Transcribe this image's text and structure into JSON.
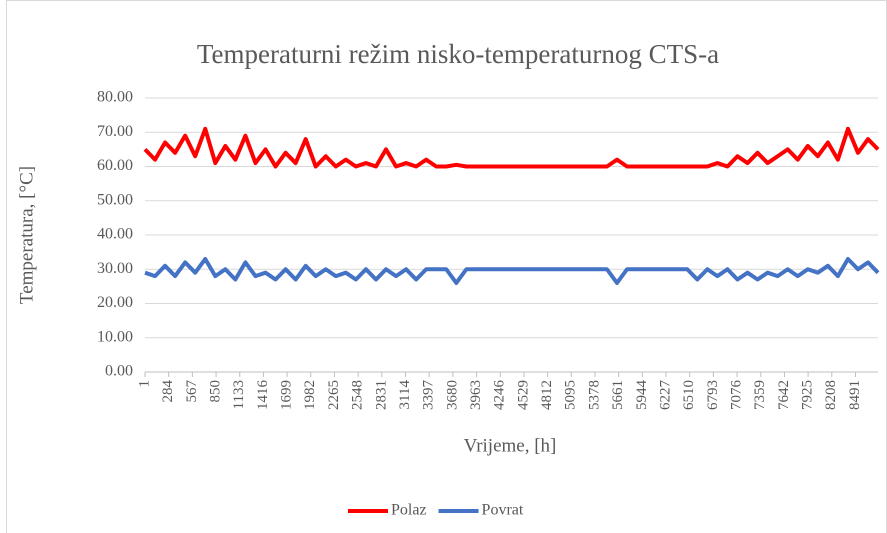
{
  "chart_data": {
    "type": "line",
    "title": "Temperaturni  režim nisko-temperaturnog  CTS-a",
    "xlabel": "Vrijeme, [h]",
    "ylabel": "Temperatura, [°C]",
    "x": [
      1,
      121,
      241,
      361,
      481,
      601,
      721,
      841,
      961,
      1081,
      1201,
      1321,
      1441,
      1561,
      1681,
      1801,
      1921,
      2041,
      2161,
      2281,
      2401,
      2521,
      2641,
      2761,
      2881,
      3001,
      3121,
      3241,
      3361,
      3481,
      3601,
      3721,
      3841,
      3961,
      4081,
      4201,
      4321,
      4441,
      4561,
      4681,
      4801,
      4921,
      5041,
      5161,
      5281,
      5401,
      5521,
      5641,
      5761,
      5881,
      6001,
      6121,
      6241,
      6361,
      6481,
      6601,
      6721,
      6841,
      6961,
      7081,
      7201,
      7321,
      7441,
      7561,
      7681,
      7801,
      7921,
      8041,
      8161,
      8281,
      8401,
      8521,
      8641,
      8760
    ],
    "series": [
      {
        "name": "Polaz",
        "color": "#ff0000",
        "values": [
          65,
          62,
          67,
          64,
          69,
          63,
          71,
          61,
          66,
          62,
          69,
          61,
          65,
          60,
          64,
          61,
          68,
          60,
          63,
          60,
          62,
          60,
          61,
          60,
          65,
          60,
          61,
          60,
          62,
          60,
          60,
          60.5,
          60,
          60,
          60,
          60,
          60,
          60,
          60,
          60,
          60,
          60,
          60,
          60,
          60,
          60,
          60,
          62,
          60,
          60,
          60,
          60,
          60,
          60,
          60,
          60,
          60,
          61,
          60,
          63,
          61,
          64,
          61,
          63,
          65,
          62,
          66,
          63,
          67,
          62,
          71,
          64,
          68,
          65
        ]
      },
      {
        "name": "Povrat",
        "color": "#4472c4",
        "values": [
          29,
          28,
          31,
          28,
          32,
          29,
          33,
          28,
          30,
          27,
          32,
          28,
          29,
          27,
          30,
          27,
          31,
          28,
          30,
          28,
          29,
          27,
          30,
          27,
          30,
          28,
          30,
          27,
          30,
          30,
          30,
          26,
          30,
          30,
          30,
          30,
          30,
          30,
          30,
          30,
          30,
          30,
          30,
          30,
          30,
          30,
          30,
          26,
          30,
          30,
          30,
          30,
          30,
          30,
          30,
          27,
          30,
          28,
          30,
          27,
          29,
          27,
          29,
          28,
          30,
          28,
          30,
          29,
          31,
          28,
          33,
          30,
          32,
          29
        ]
      }
    ],
    "xlim": [
      1,
      8760
    ],
    "xticks": [
      1,
      284,
      567,
      850,
      1133,
      1416,
      1699,
      1982,
      2265,
      2548,
      2831,
      3114,
      3397,
      3680,
      3963,
      4246,
      4529,
      4812,
      5095,
      5378,
      5661,
      5944,
      6227,
      6510,
      6793,
      7076,
      7359,
      7642,
      7925,
      8208,
      8491
    ],
    "ylim": [
      0,
      80
    ],
    "yticks": [
      {
        "value": 0,
        "label": "0.00"
      },
      {
        "value": 10,
        "label": "10.00"
      },
      {
        "value": 20,
        "label": "20.00"
      },
      {
        "value": 30,
        "label": "30.00"
      },
      {
        "value": 40,
        "label": "40.00"
      },
      {
        "value": 50,
        "label": "50.00"
      },
      {
        "value": 60,
        "label": "60.00"
      },
      {
        "value": 70,
        "label": "70.00"
      },
      {
        "value": 80,
        "label": "80.00"
      }
    ],
    "grid": true,
    "legend": "bottom"
  }
}
